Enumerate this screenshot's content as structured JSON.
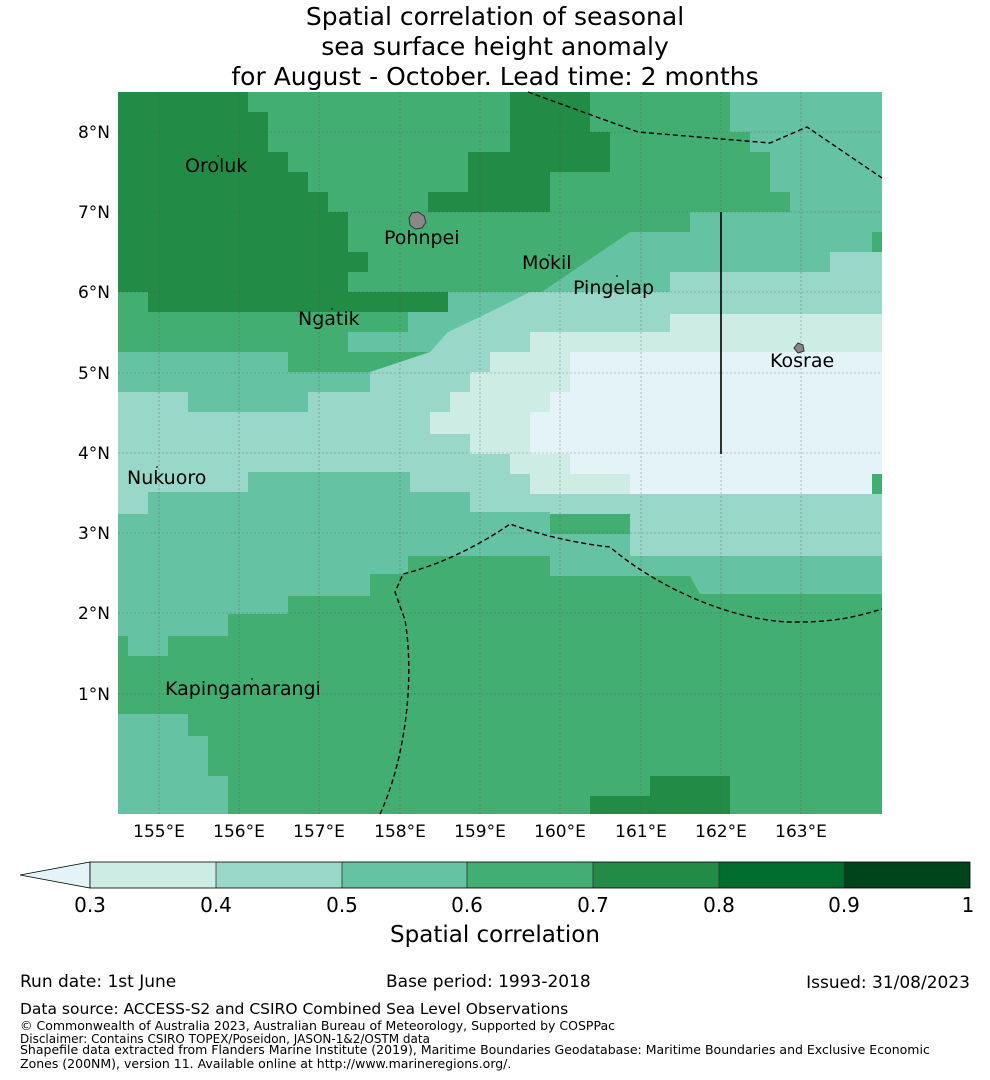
{
  "title": {
    "line1": "Spatial correlation of seasonal",
    "line2": "sea surface height anomaly",
    "line3": "for August - October. Lead time: 2 months"
  },
  "map": {
    "lon_ticks": [
      "155°E",
      "156°E",
      "157°E",
      "158°E",
      "159°E",
      "160°E",
      "161°E",
      "162°E",
      "163°E"
    ],
    "lat_ticks": [
      "8°N",
      "7°N",
      "6°N",
      "5°N",
      "4°N",
      "3°N",
      "2°N",
      "1°N"
    ],
    "places": [
      {
        "name": "Oroluk",
        "key": "oroluk"
      },
      {
        "name": "Pohnpei",
        "key": "pohnpei"
      },
      {
        "name": "Mokil",
        "key": "mokil"
      },
      {
        "name": "Pingelap",
        "key": "pingelap"
      },
      {
        "name": "Ngatik",
        "key": "ngatik"
      },
      {
        "name": "Kosrae",
        "key": "kosrae"
      },
      {
        "name": "Nukuoro",
        "key": "nukuoro"
      },
      {
        "name": "Kapingamarangi",
        "key": "kapingamarangi"
      }
    ]
  },
  "colorbar": {
    "label": "Spatial correlation",
    "ticks": [
      "0.3",
      "0.4",
      "0.5",
      "0.6",
      "0.7",
      "0.8",
      "0.9",
      "1"
    ],
    "colors": [
      "#e4f3f8",
      "#cdece4",
      "#99d8c8",
      "#65c2a3",
      "#42ae72",
      "#228b45",
      "#006d2c",
      "#00441b"
    ]
  },
  "footer": {
    "run_date": "Run date: 1st June",
    "base_period": "Base period: 1993-2018",
    "issued": "Issued: 31/08/2023",
    "data_source": "Data source: ACCESS-S2 and CSIRO Combined Sea Level Observations",
    "copyright": "© Commonwealth of Australia 2023, Australian Bureau of Meteorology, Supported by COSPPac",
    "disclaimer": "Disclaimer: Contains CSIRO TOPEX/Poseidon, JASON-1&2/OSTM data",
    "shapefile": "Shapefile data extracted from Flanders Marine Institute (2019), Maritime Boundaries Geodatabase: Maritime Boundaries and Exclusive Economic Zones (200NM), version 11. Available online at http://www.marineregions.org/."
  }
}
